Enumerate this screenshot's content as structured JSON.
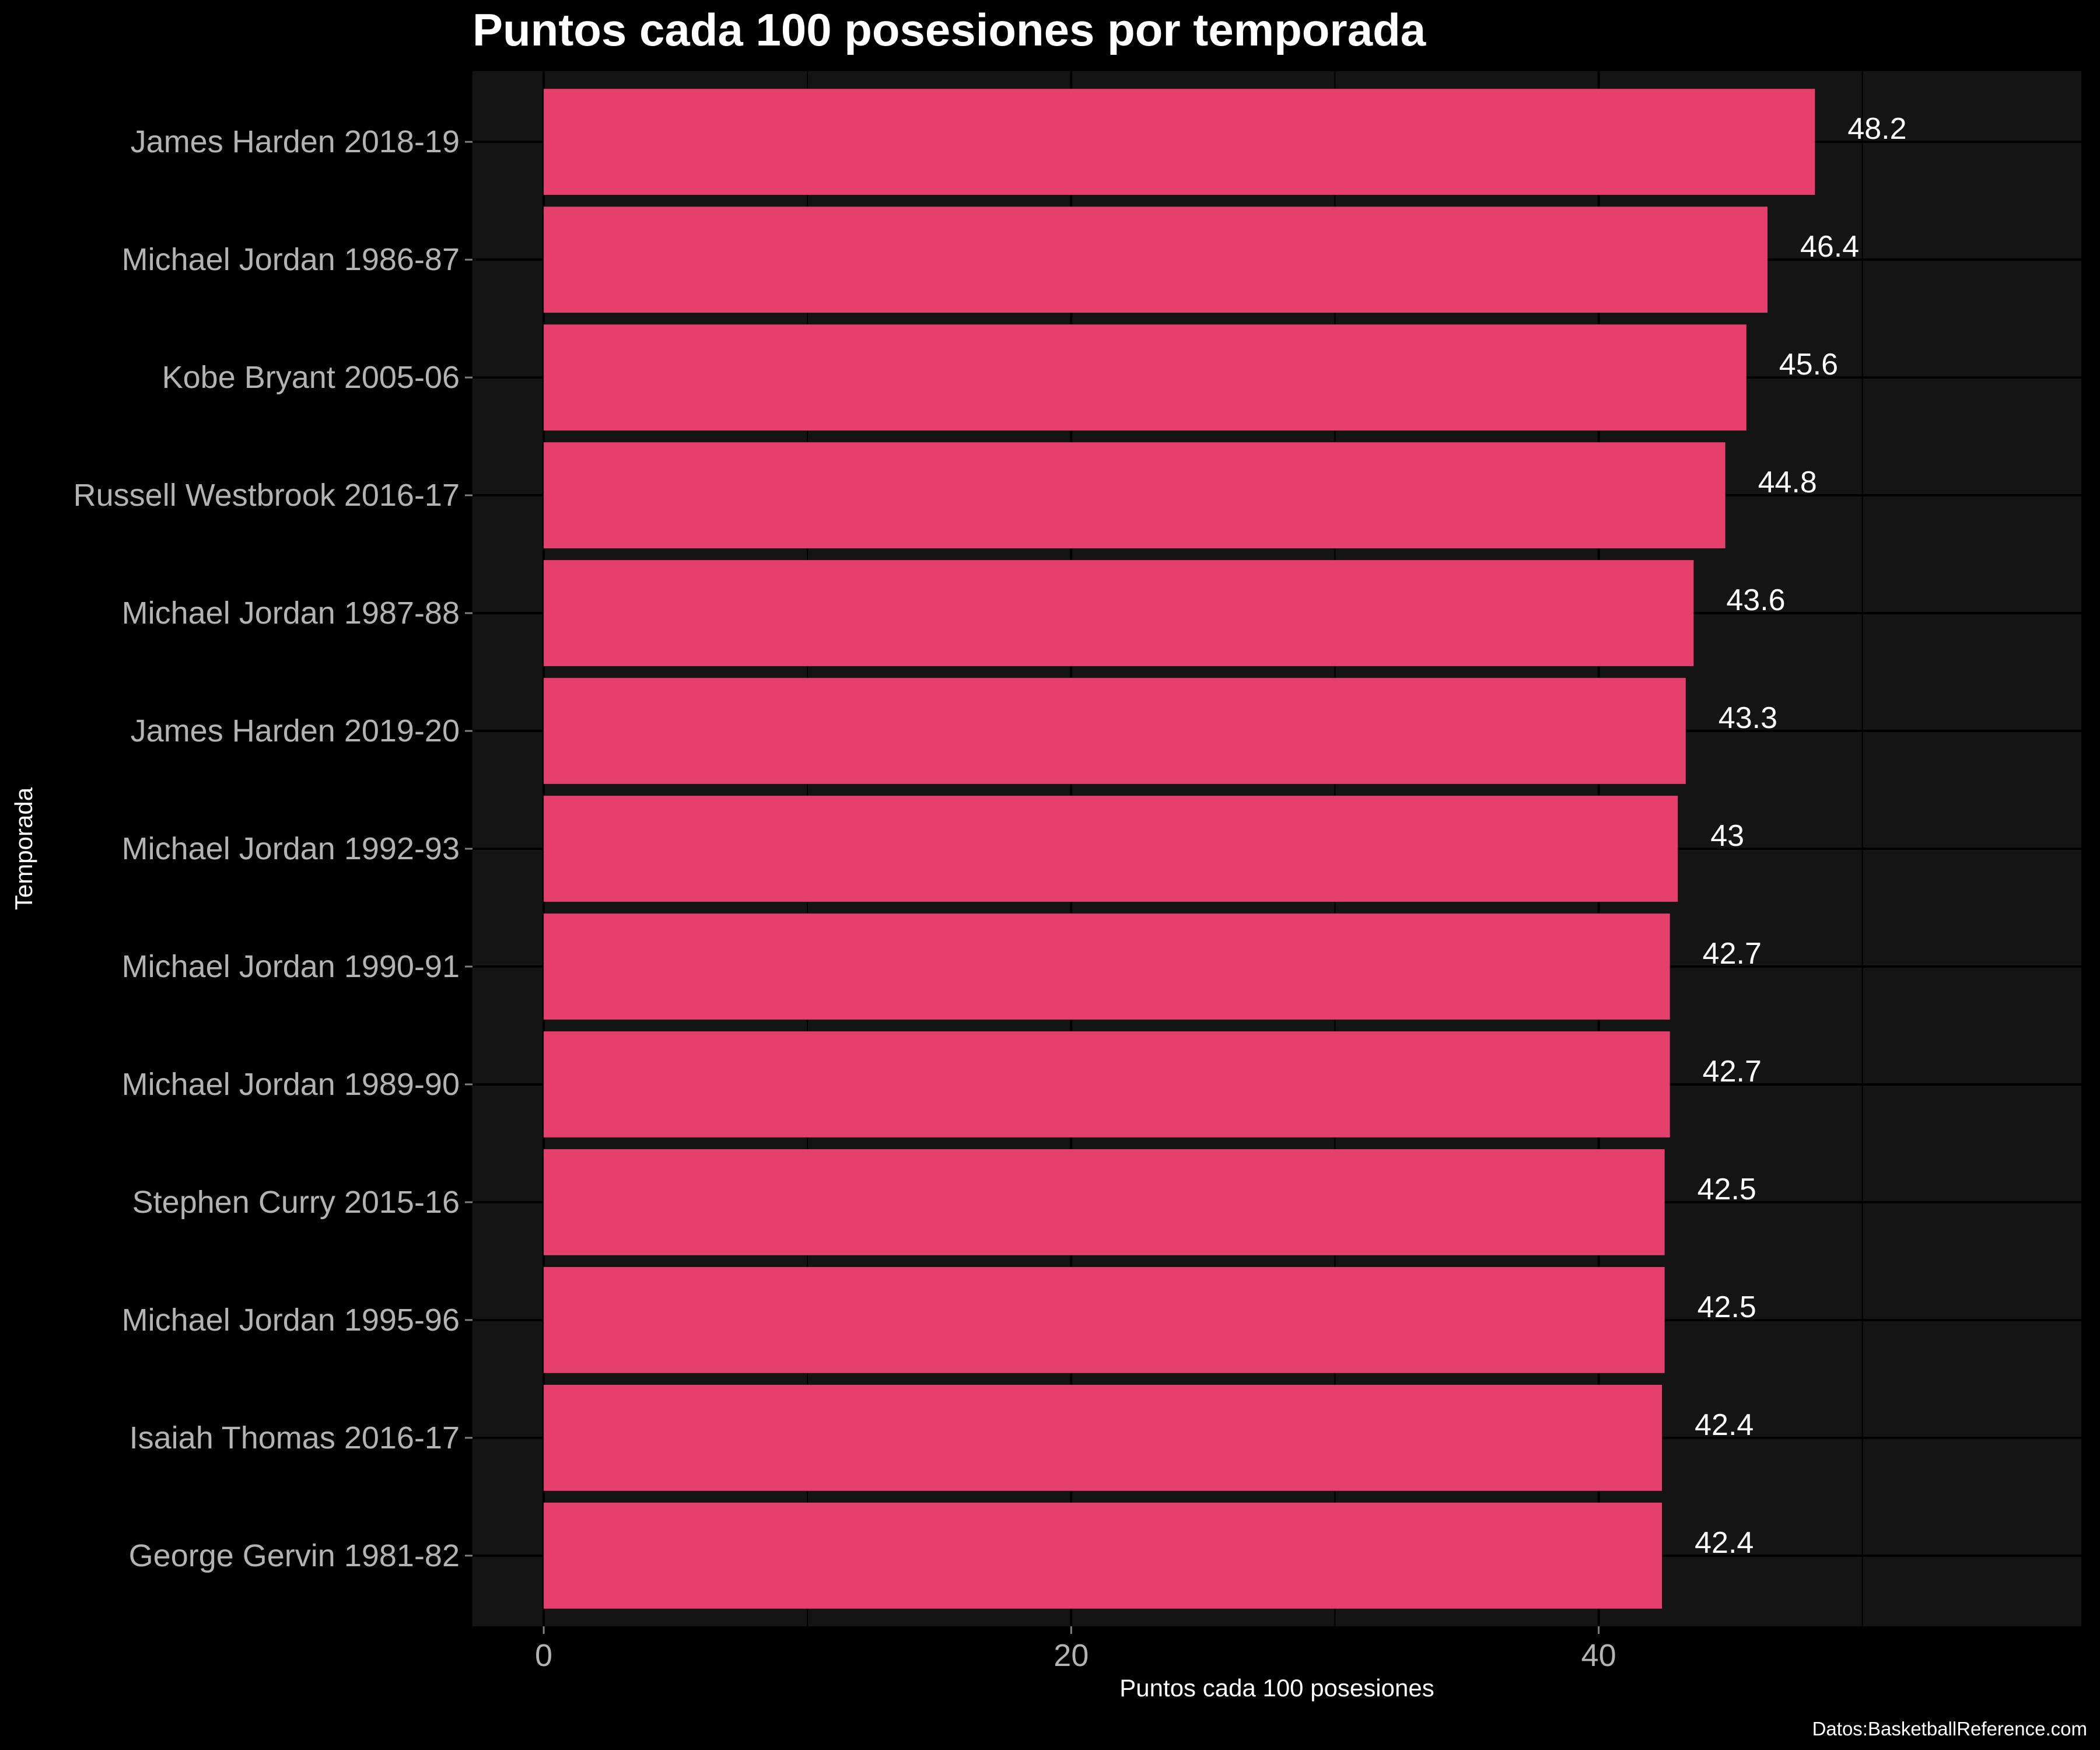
{
  "chart_data": {
    "type": "bar",
    "orientation": "horizontal",
    "title": "Puntos cada 100 posesiones por temporada",
    "xlabel": "Puntos cada 100 posesiones",
    "ylabel": "Temporada",
    "caption": "Datos:BasketballReference.com",
    "categories": [
      "James Harden 2018-19",
      "Michael Jordan 1986-87",
      "Kobe Bryant 2005-06",
      "Russell Westbrook 2016-17",
      "Michael Jordan 1987-88",
      "James Harden 2019-20",
      "Michael Jordan 1992-93",
      "Michael Jordan 1990-91",
      "Michael Jordan 1989-90",
      "Stephen Curry 2015-16",
      "Michael Jordan 1995-96",
      "Isaiah Thomas 2016-17",
      "George Gervin 1981-82"
    ],
    "values": [
      48.2,
      46.4,
      45.6,
      44.8,
      43.6,
      43.3,
      43,
      42.7,
      42.7,
      42.5,
      42.5,
      42.4,
      42.4
    ],
    "data_labels": [
      "48.2",
      "46.4",
      "45.6",
      "44.8",
      "43.6",
      "43.3",
      "43",
      "42.7",
      "42.7",
      "42.5",
      "42.5",
      "42.4",
      "42.4"
    ],
    "xlim": [
      -2.7,
      58.3
    ],
    "xticks": [
      0,
      20,
      40
    ],
    "x_minor_gridlines": [
      10,
      30,
      50
    ],
    "grid": true,
    "legend": "none",
    "colors": {
      "background": "#000000",
      "panel": "#141414",
      "gridline": "#000000",
      "bar": "#e5406b",
      "title": "#ffffff",
      "axis_title": "#ffffff",
      "tick_label": "#b3b3b3",
      "data_label": "#ffffff"
    }
  }
}
